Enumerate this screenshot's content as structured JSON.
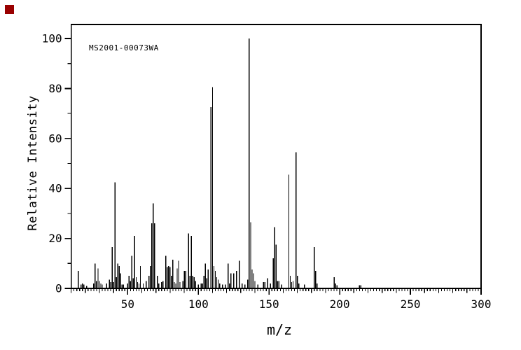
{
  "page": {
    "background": "#ffffff"
  },
  "corner_marker": {
    "color": "#990000"
  },
  "chart_data": {
    "type": "bar",
    "subtype": "mass-spectrum-stick-plot",
    "spectrum_id": "MS2001-00073WA",
    "xlabel": "m/z",
    "ylabel": "Relative Intensity",
    "xlim": [
      10,
      300
    ],
    "ylim": [
      0,
      100
    ],
    "x_major_ticks": [
      50,
      100,
      150,
      200,
      250,
      300
    ],
    "y_major_ticks": [
      0,
      20,
      40,
      60,
      80,
      100
    ],
    "x_minor_step": 2,
    "x_medium_step": 10,
    "y_minor_step": 10,
    "grid": "off",
    "line_color": "#000000",
    "base_peak": {
      "mz": 136,
      "intensity": 100
    },
    "peaks": [
      [
        15,
        7
      ],
      [
        17,
        1.5
      ],
      [
        18,
        2
      ],
      [
        19,
        1.5
      ],
      [
        21,
        1
      ],
      [
        26,
        2
      ],
      [
        27,
        10
      ],
      [
        28,
        3
      ],
      [
        29,
        8
      ],
      [
        30,
        3
      ],
      [
        31,
        2
      ],
      [
        32,
        1.5
      ],
      [
        35,
        2
      ],
      [
        37,
        3.5
      ],
      [
        38,
        2.5
      ],
      [
        39,
        16.5
      ],
      [
        40,
        2.5
      ],
      [
        41,
        42.5
      ],
      [
        42,
        4.5
      ],
      [
        43,
        10
      ],
      [
        44,
        9
      ],
      [
        45,
        6
      ],
      [
        46,
        1.5
      ],
      [
        47,
        1.5
      ],
      [
        50,
        2
      ],
      [
        51,
        5
      ],
      [
        52,
        3
      ],
      [
        53,
        13
      ],
      [
        54,
        4
      ],
      [
        55,
        21
      ],
      [
        56,
        4.5
      ],
      [
        57,
        2.5
      ],
      [
        58,
        2
      ],
      [
        59,
        9
      ],
      [
        61,
        2
      ],
      [
        63,
        3
      ],
      [
        65,
        5
      ],
      [
        66,
        9
      ],
      [
        67,
        26
      ],
      [
        68,
        34
      ],
      [
        69,
        26
      ],
      [
        71,
        5
      ],
      [
        72,
        2
      ],
      [
        74,
        2.5
      ],
      [
        75,
        3
      ],
      [
        77,
        13
      ],
      [
        78,
        8.5
      ],
      [
        79,
        9
      ],
      [
        80,
        8.5
      ],
      [
        81,
        5
      ],
      [
        82,
        11.5
      ],
      [
        83,
        2.5
      ],
      [
        84,
        2
      ],
      [
        85,
        8
      ],
      [
        86,
        11
      ],
      [
        87,
        2.5
      ],
      [
        89,
        3
      ],
      [
        90,
        7
      ],
      [
        91,
        7
      ],
      [
        93,
        22
      ],
      [
        94,
        5
      ],
      [
        95,
        21
      ],
      [
        96,
        5
      ],
      [
        97,
        4.5
      ],
      [
        98,
        3
      ],
      [
        100,
        1.5
      ],
      [
        102,
        2
      ],
      [
        103,
        2
      ],
      [
        104,
        5
      ],
      [
        105,
        10
      ],
      [
        106,
        4
      ],
      [
        107,
        7.5
      ],
      [
        109,
        72.5
      ],
      [
        110,
        80.5
      ],
      [
        111,
        9
      ],
      [
        112,
        7
      ],
      [
        113,
        4.5
      ],
      [
        114,
        3.5
      ],
      [
        115,
        2
      ],
      [
        117,
        1.5
      ],
      [
        119,
        1.5
      ],
      [
        121,
        10
      ],
      [
        122,
        2
      ],
      [
        123,
        6
      ],
      [
        125,
        6
      ],
      [
        127,
        7
      ],
      [
        129,
        11
      ],
      [
        131,
        2
      ],
      [
        133,
        1.5
      ],
      [
        135,
        3.5
      ],
      [
        136,
        100
      ],
      [
        137,
        26.5
      ],
      [
        138,
        7.5
      ],
      [
        139,
        6
      ],
      [
        140,
        3
      ],
      [
        142,
        1.5
      ],
      [
        146,
        2.5
      ],
      [
        147,
        2.5
      ],
      [
        149,
        4
      ],
      [
        151,
        2
      ],
      [
        153,
        12
      ],
      [
        154,
        24.5
      ],
      [
        155,
        17.5
      ],
      [
        156,
        3
      ],
      [
        157,
        3
      ],
      [
        159,
        1.5
      ],
      [
        164,
        45.5
      ],
      [
        165,
        5
      ],
      [
        166,
        2.5
      ],
      [
        167,
        3
      ],
      [
        169,
        54.5
      ],
      [
        170,
        5
      ],
      [
        171,
        2
      ],
      [
        175,
        1.5
      ],
      [
        182,
        16.5
      ],
      [
        183,
        7
      ],
      [
        184,
        2
      ],
      [
        196,
        4.5
      ],
      [
        197,
        2
      ],
      [
        198,
        1.2
      ],
      [
        214,
        1.3
      ],
      [
        215,
        1.3
      ]
    ]
  }
}
